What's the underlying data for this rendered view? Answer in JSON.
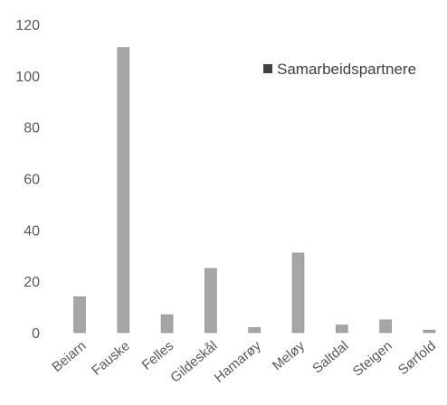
{
  "chart_data": {
    "type": "bar",
    "categories": [
      "Beiarn",
      "Fauske",
      "Felles",
      "Gildeskål",
      "Hamarøy",
      "Meløy",
      "Saltdal",
      "Steigen",
      "Sørfold"
    ],
    "series": [
      {
        "name": "Samarbeidspartnere",
        "values": [
          14,
          111,
          7,
          25,
          2,
          31,
          3,
          5,
          1
        ]
      }
    ],
    "title": "",
    "xlabel": "",
    "ylabel": "",
    "ylim": [
      0,
      120
    ],
    "yticks": [
      0,
      20,
      40,
      60,
      80,
      100,
      120
    ],
    "grid": false,
    "legend_position": "top-right",
    "bar_color": "#a6a6a6",
    "text_color": "#595959"
  }
}
